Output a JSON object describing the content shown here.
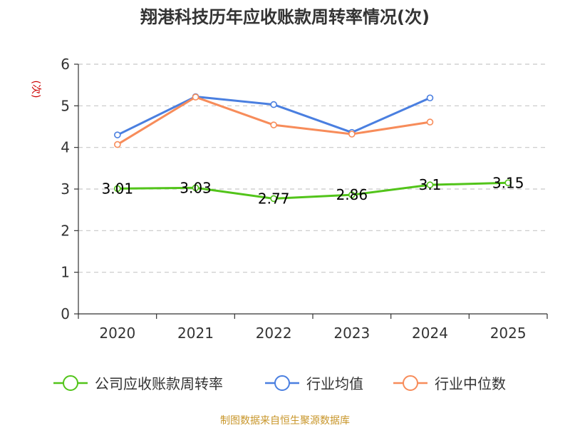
{
  "chart_data": {
    "type": "line",
    "title": "翔港科技历年应收账款周转率情况(次)",
    "ylabel": "(次)",
    "xlabel": "",
    "categories": [
      "2020",
      "2021",
      "2022",
      "2023",
      "2024",
      "2025"
    ],
    "ylim": [
      0,
      6
    ],
    "yticks": [
      0,
      1,
      2,
      3,
      4,
      5,
      6
    ],
    "grid": true,
    "legend_position": "bottom",
    "series": [
      {
        "name": "公司应收账款周转率",
        "color": "#52c41a",
        "values": [
          3.01,
          3.03,
          2.77,
          2.86,
          3.1,
          3.15
        ],
        "labels": [
          "3.01",
          "3.03",
          "2.77",
          "2.86",
          "3.1",
          "3.15"
        ]
      },
      {
        "name": "行业均值",
        "color": "#4a7fe0",
        "values": [
          4.3,
          5.22,
          5.03,
          4.36,
          5.19,
          null
        ]
      },
      {
        "name": "行业中位数",
        "color": "#f78c5a",
        "values": [
          4.07,
          5.21,
          4.54,
          4.32,
          4.61,
          null
        ]
      }
    ]
  },
  "source": "制图数据来自恒生聚源数据库"
}
